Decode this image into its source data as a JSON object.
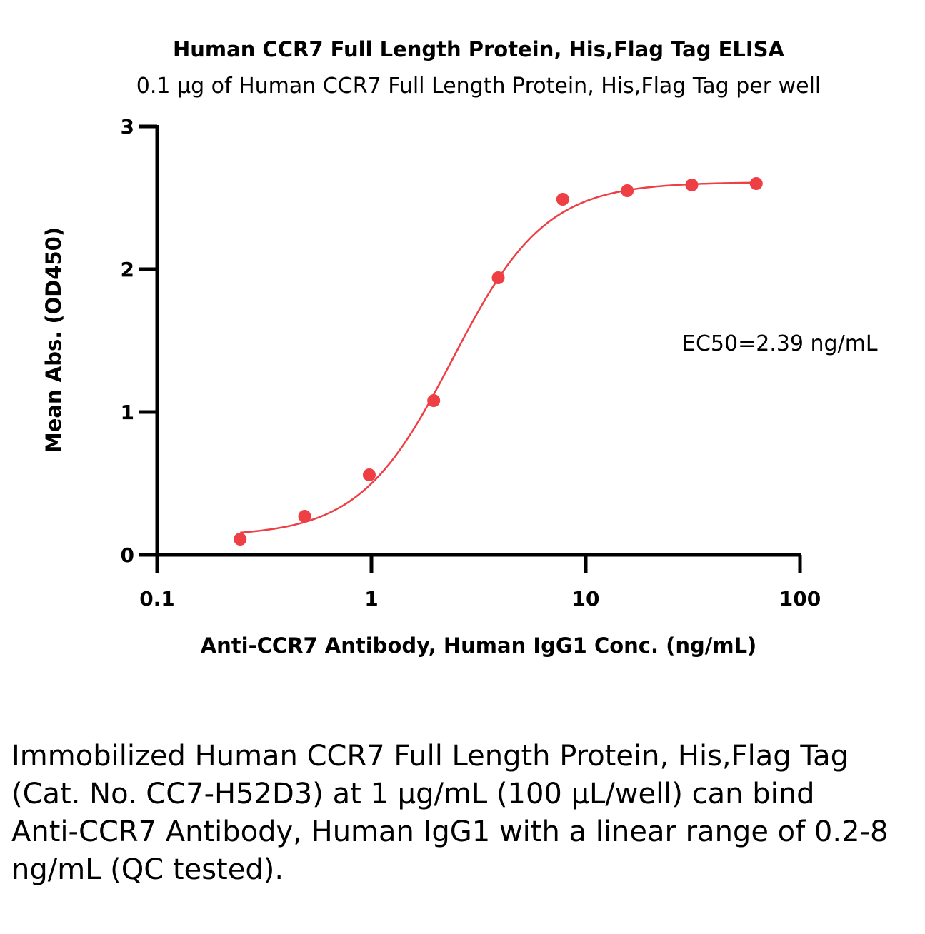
{
  "chart_data": {
    "type": "scatter",
    "title": "Human CCR7 Full Length Protein, His,Flag Tag ELISA",
    "subtitle": "0.1 μg of Human CCR7 Full Length Protein, His,Flag Tag per well",
    "xlabel": "Anti-CCR7 Antibody, Human IgG1 Conc. (ng/mL)",
    "ylabel": "Mean Abs. (OD450)",
    "x_scale": "log",
    "xlim": [
      0.1,
      100
    ],
    "ylim": [
      0,
      3
    ],
    "x_ticks": [
      {
        "value": 0.1,
        "label": "0.1"
      },
      {
        "value": 1,
        "label": "1"
      },
      {
        "value": 10,
        "label": "10"
      },
      {
        "value": 100,
        "label": "100"
      }
    ],
    "y_ticks": [
      {
        "value": 0,
        "label": "0"
      },
      {
        "value": 1,
        "label": "1"
      },
      {
        "value": 2,
        "label": "2"
      },
      {
        "value": 3,
        "label": "3"
      }
    ],
    "grid": false,
    "series": [
      {
        "color": "#ee3f45",
        "x": [
          0.244,
          0.488,
          0.977,
          1.953,
          3.906,
          7.813,
          15.625,
          31.25,
          62.5
        ],
        "y": [
          0.11,
          0.27,
          0.56,
          1.08,
          1.94,
          2.49,
          2.55,
          2.59,
          2.6
        ]
      }
    ],
    "fit": {
      "model": "4PL",
      "bottom": 0.13,
      "top": 2.61,
      "ec50": 2.39,
      "hill": 2.0,
      "x_range": [
        0.244,
        62.5
      ]
    },
    "annotations": [
      {
        "text": "EC50=2.39 ng/mL"
      }
    ]
  },
  "caption": {
    "text": "Immobilized Human CCR7 Full Length Protein, His,Flag Tag (Cat. No. CC7-H52D3) at 1 μg/mL (100 μL/well) can bind Anti-CCR7 Antibody, Human IgG1 with a linear range of 0.2-8 ng/mL (QC tested)."
  }
}
